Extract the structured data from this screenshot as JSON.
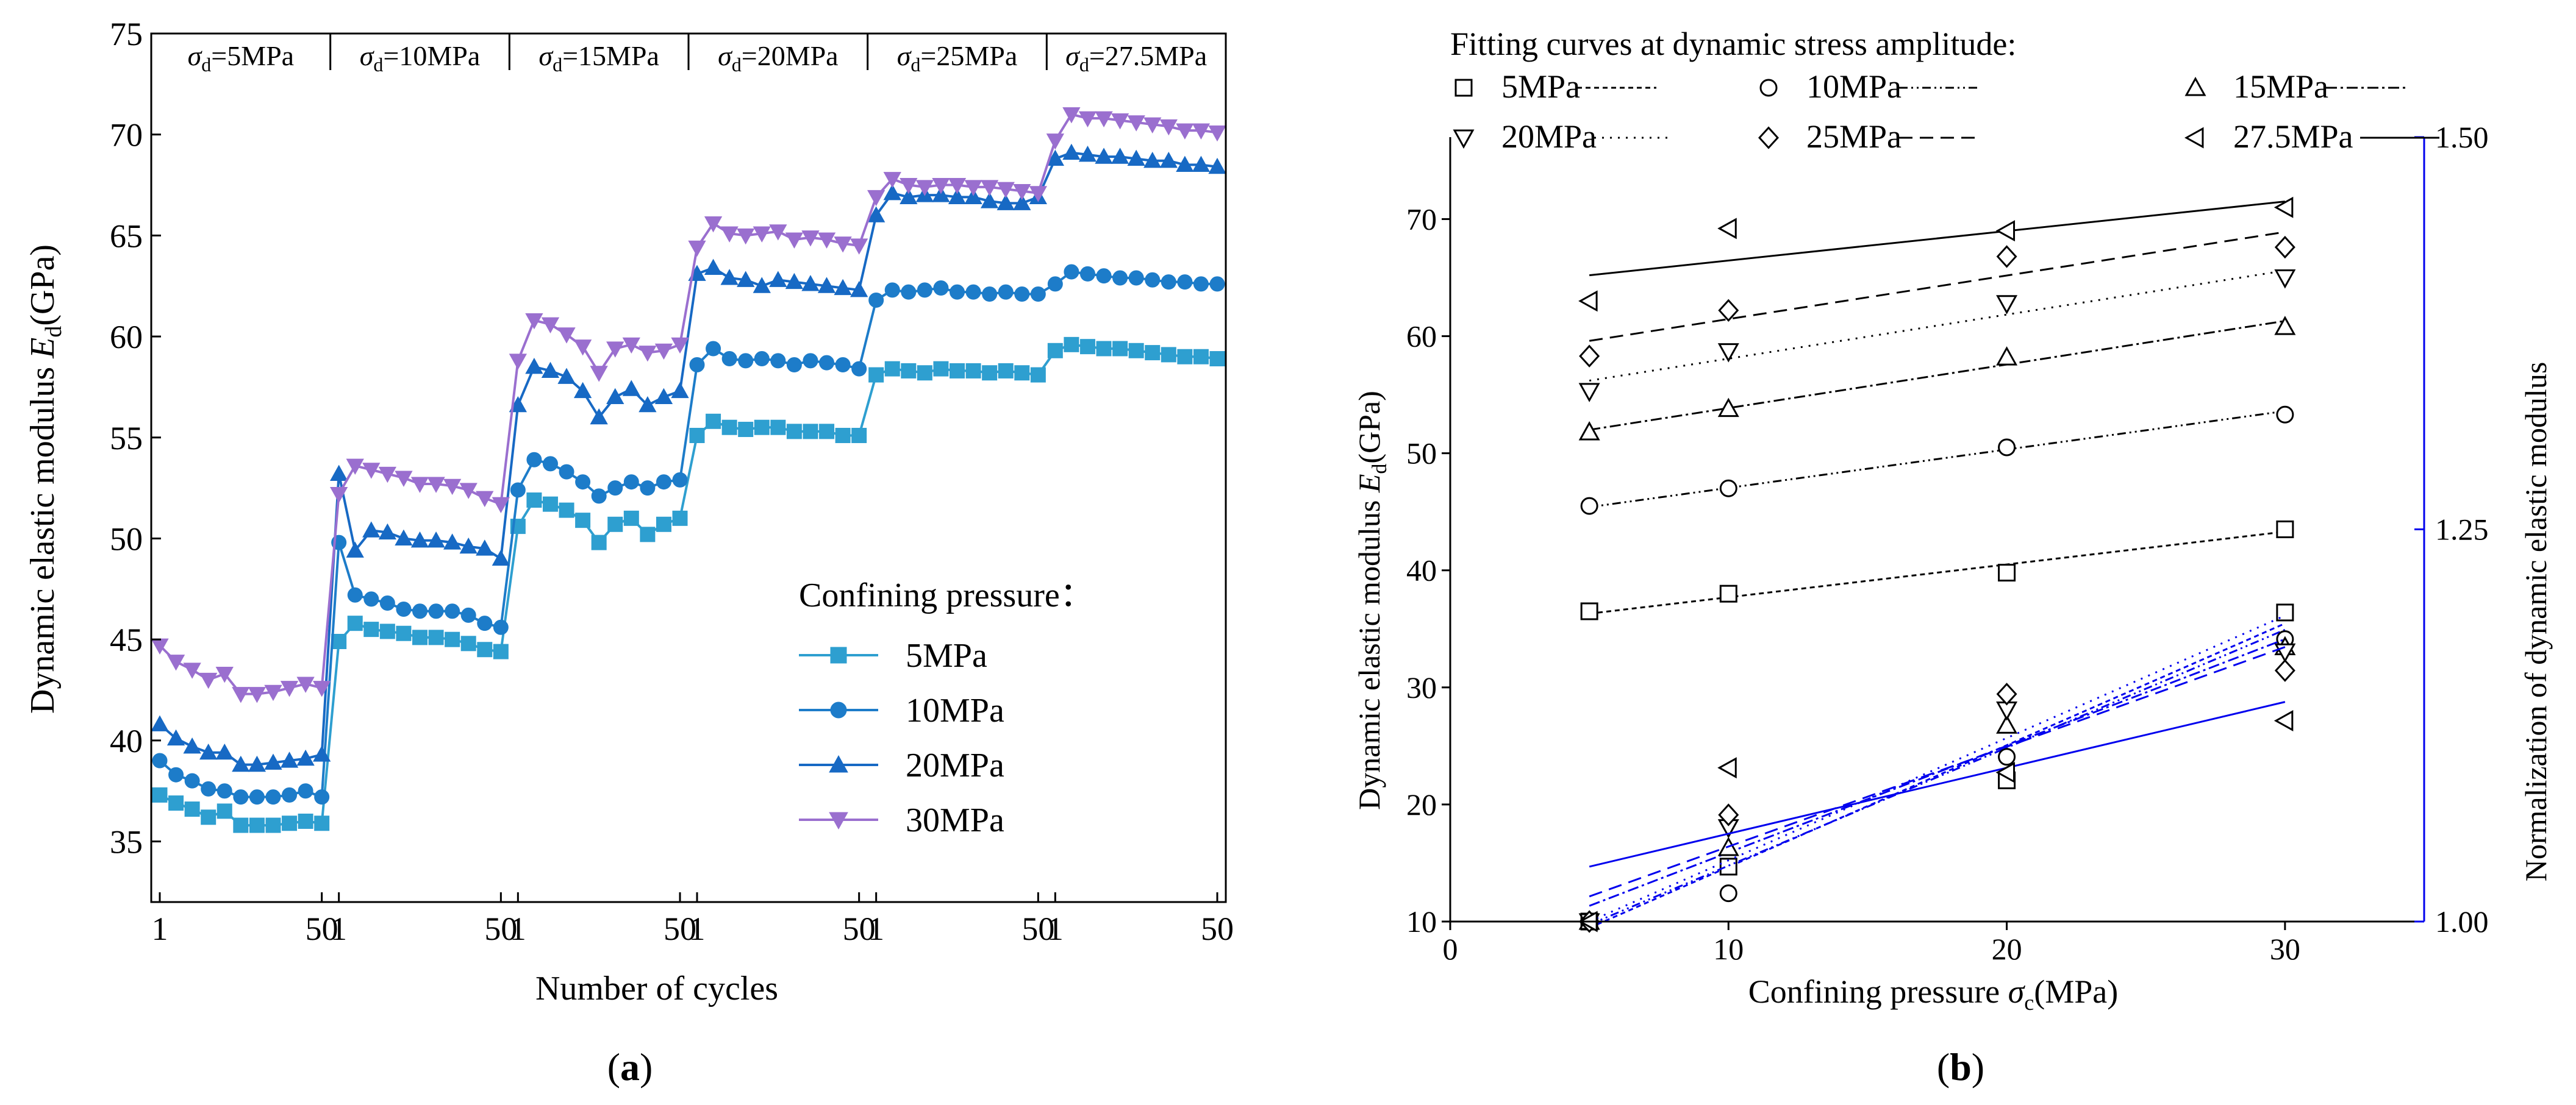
{
  "chart_data": [
    {
      "type": "line",
      "panel_label": "(a)",
      "xlabel": "Number of cycles",
      "ylabel_prefix": "Dynamic elastic modulus ",
      "ylabel_var": "E",
      "ylabel_sub": "d",
      "ylabel_suffix": "(GPa)",
      "ylim": [
        32,
        75
      ],
      "yticks": [
        35,
        40,
        45,
        50,
        55,
        60,
        65,
        70,
        75
      ],
      "stage_labels": [
        {
          "sym": "σ",
          "sub": "d",
          "val": "=5MPa"
        },
        {
          "sym": "σ",
          "sub": "d",
          "val": "=10MPa"
        },
        {
          "sym": "σ",
          "sub": "d",
          "val": "=15MPa"
        },
        {
          "sym": "σ",
          "sub": "d",
          "val": "=20MPa"
        },
        {
          "sym": "σ",
          "sub": "d",
          "val": "=25MPa"
        },
        {
          "sym": "σ",
          "sub": "d",
          "val": "=27.5MPa"
        }
      ],
      "stage_tick_labels": [
        "1",
        "50"
      ],
      "points_per_stage": 11,
      "legend_title": "Confining pressure：",
      "series": [
        {
          "name": "5MPa",
          "marker": "square",
          "color": "#2e9fd0",
          "values": [
            [
              37.3,
              36.9,
              36.6,
              36.2,
              36.5,
              35.8,
              35.8,
              35.8,
              35.9,
              36.0,
              35.9
            ],
            [
              44.9,
              45.8,
              45.5,
              45.4,
              45.3,
              45.1,
              45.1,
              45.0,
              44.8,
              44.5,
              44.4
            ],
            [
              50.6,
              51.9,
              51.7,
              51.4,
              50.9,
              49.8,
              50.7,
              51.0,
              50.2,
              50.7,
              51.0
            ],
            [
              55.1,
              55.8,
              55.5,
              55.4,
              55.5,
              55.5,
              55.3,
              55.3,
              55.3,
              55.1,
              55.1
            ],
            [
              58.1,
              58.4,
              58.3,
              58.2,
              58.4,
              58.3,
              58.3,
              58.2,
              58.3,
              58.2,
              58.1
            ],
            [
              59.3,
              59.6,
              59.5,
              59.4,
              59.4,
              59.3,
              59.2,
              59.1,
              59.0,
              59.0,
              58.9
            ]
          ]
        },
        {
          "name": "10MPa",
          "marker": "circle",
          "color": "#1d7cc9",
          "values": [
            [
              39.0,
              38.3,
              38.0,
              37.6,
              37.5,
              37.2,
              37.2,
              37.2,
              37.3,
              37.5,
              37.2
            ],
            [
              49.8,
              47.2,
              47.0,
              46.8,
              46.5,
              46.4,
              46.4,
              46.4,
              46.2,
              45.8,
              45.6
            ],
            [
              52.4,
              53.9,
              53.7,
              53.3,
              52.8,
              52.1,
              52.5,
              52.8,
              52.5,
              52.8,
              52.9
            ],
            [
              58.6,
              59.4,
              58.9,
              58.8,
              58.9,
              58.8,
              58.6,
              58.8,
              58.7,
              58.6,
              58.4
            ],
            [
              61.8,
              62.3,
              62.2,
              62.3,
              62.4,
              62.2,
              62.2,
              62.1,
              62.2,
              62.1,
              62.1
            ],
            [
              62.6,
              63.2,
              63.1,
              63.0,
              62.9,
              62.9,
              62.8,
              62.7,
              62.7,
              62.6,
              62.6
            ]
          ]
        },
        {
          "name": "20MPa",
          "marker": "triangle-up",
          "color": "#1769c4",
          "values": [
            [
              40.8,
              40.1,
              39.7,
              39.4,
              39.4,
              38.8,
              38.8,
              38.9,
              39.0,
              39.1,
              39.3
            ],
            [
              53.2,
              49.4,
              50.4,
              50.3,
              50.0,
              49.9,
              49.9,
              49.8,
              49.6,
              49.5,
              49.0
            ],
            [
              56.6,
              58.5,
              58.3,
              58.0,
              57.3,
              56.0,
              57.0,
              57.4,
              56.6,
              57.0,
              57.3
            ],
            [
              63.1,
              63.4,
              62.9,
              62.8,
              62.5,
              62.8,
              62.7,
              62.6,
              62.5,
              62.4,
              62.3
            ],
            [
              66.0,
              67.1,
              66.9,
              67.0,
              67.0,
              66.9,
              66.9,
              66.7,
              66.6,
              66.6,
              66.9
            ],
            [
              68.8,
              69.1,
              69.0,
              68.9,
              68.9,
              68.8,
              68.7,
              68.7,
              68.5,
              68.5,
              68.4
            ]
          ]
        },
        {
          "name": "30MPa",
          "marker": "triangle-down",
          "color": "#9a6fcf",
          "values": [
            [
              44.7,
              43.9,
              43.5,
              43.0,
              43.3,
              42.3,
              42.3,
              42.4,
              42.6,
              42.8,
              42.6
            ],
            [
              52.2,
              53.6,
              53.4,
              53.2,
              53.0,
              52.7,
              52.7,
              52.6,
              52.4,
              52.0,
              51.7
            ],
            [
              58.8,
              60.8,
              60.6,
              60.1,
              59.5,
              58.2,
              59.4,
              59.6,
              59.2,
              59.3,
              59.6
            ],
            [
              64.4,
              65.6,
              65.1,
              65.0,
              65.1,
              65.2,
              64.8,
              64.9,
              64.8,
              64.6,
              64.5
            ],
            [
              66.9,
              67.8,
              67.5,
              67.4,
              67.5,
              67.5,
              67.4,
              67.4,
              67.3,
              67.2,
              67.1
            ],
            [
              69.7,
              71.0,
              70.8,
              70.8,
              70.7,
              70.6,
              70.5,
              70.4,
              70.2,
              70.2,
              70.1
            ]
          ]
        }
      ]
    },
    {
      "type": "scatter",
      "panel_label": "(b)",
      "xlabel_prefix": "Confining pressure ",
      "xlabel_var": "σ",
      "xlabel_sub": "c",
      "xlabel_suffix": "(MPa)",
      "ylabel_prefix": "Dynamic elastic modulus ",
      "ylabel_var": "E",
      "ylabel_sub": "d",
      "ylabel_suffix": "(GPa)",
      "y2label": "Normalization of dynamic elastic modulus",
      "xlim": [
        0,
        35
      ],
      "ylim": [
        10,
        77
      ],
      "y2lim": [
        1.0,
        1.5
      ],
      "xticks": [
        0,
        10,
        20,
        30
      ],
      "yticks": [
        10,
        20,
        30,
        40,
        50,
        60,
        70
      ],
      "y2ticks": [
        "1.00",
        "1.25",
        "1.50"
      ],
      "legend_title": "Fitting curves at dynamic stress amplitude:",
      "x": [
        5,
        10,
        20,
        30
      ],
      "series": [
        {
          "name": "5MPa",
          "marker": "square",
          "dash": "8,6",
          "modulus": [
            36.5,
            38.0,
            39.8,
            43.5
          ],
          "fit": [
            36.3,
            43.3
          ],
          "normalized": [
            1.0,
            1.035,
            1.09,
            1.197
          ],
          "norm_fit": [
            0.996,
            1.19
          ]
        },
        {
          "name": "10MPa",
          "marker": "circle",
          "dash": "14,6,3,6,3,6",
          "modulus": [
            45.5,
            47.0,
            50.5,
            53.3
          ],
          "fit": [
            45.4,
            53.6
          ],
          "normalized": [
            1.0,
            1.018,
            1.105,
            1.18
          ],
          "norm_fit": [
            0.998,
            1.186
          ]
        },
        {
          "name": "15MPa",
          "marker": "triangle-up",
          "dash": "18,6,4,6",
          "modulus": [
            51.8,
            53.8,
            58.2,
            60.8
          ],
          "fit": [
            52.0,
            61.3
          ],
          "normalized": [
            1.0,
            1.047,
            1.125,
            1.175
          ],
          "norm_fit": [
            1.01,
            1.18
          ]
        },
        {
          "name": "20MPa",
          "marker": "triangle-down",
          "dash": "3,10",
          "modulus": [
            55.3,
            58.7,
            62.8,
            65.0
          ],
          "fit": [
            56.2,
            65.6
          ],
          "normalized": [
            1.0,
            1.06,
            1.135,
            1.172
          ],
          "norm_fit": [
            1.0,
            1.195
          ]
        },
        {
          "name": "25MPa",
          "marker": "diamond",
          "dash": "22,12",
          "modulus": [
            58.3,
            62.2,
            66.8,
            67.6
          ],
          "fit": [
            59.6,
            68.9
          ],
          "normalized": [
            1.0,
            1.068,
            1.145,
            1.16
          ],
          "norm_fit": [
            1.016,
            1.175
          ]
        },
        {
          "name": "27.5MPa",
          "marker": "triangle-left",
          "dash": "",
          "modulus": [
            63.0,
            69.2,
            69.0,
            71.0
          ],
          "fit": [
            65.2,
            71.5
          ],
          "normalized": [
            1.0,
            1.098,
            1.095,
            1.128
          ],
          "norm_fit": [
            1.035,
            1.14
          ]
        }
      ]
    }
  ]
}
